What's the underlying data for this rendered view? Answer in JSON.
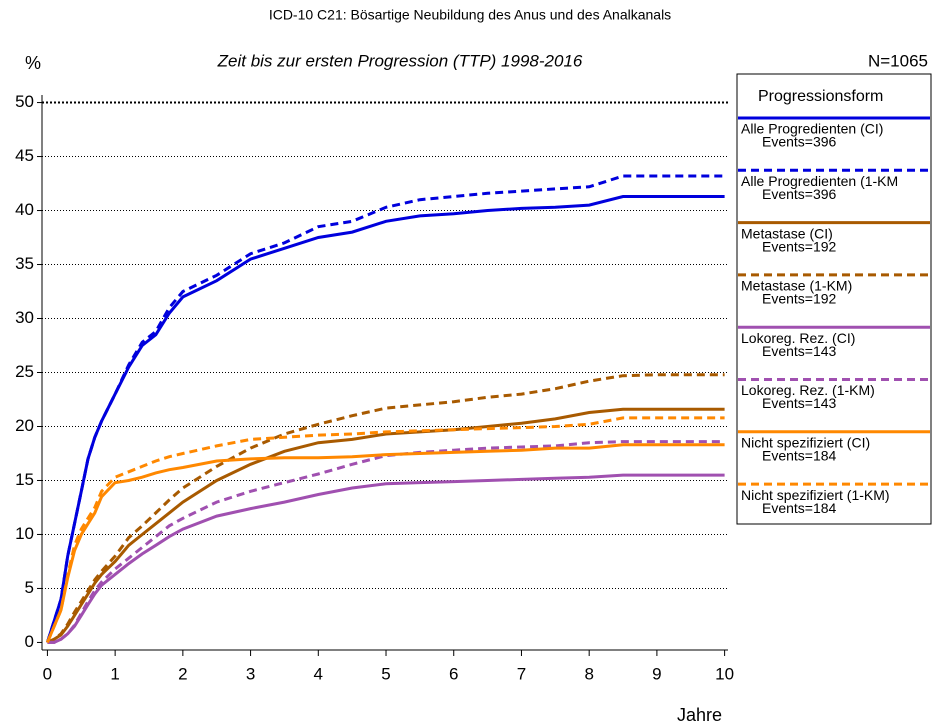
{
  "chart_data": {
    "type": "line",
    "title": "ICD-10 C21: Bösartige Neubildung des Anus und des Analkanals",
    "subtitle": "Zeit bis zur ersten Progression (TTP) 1998-2016",
    "y_label": "%",
    "x_label": "Jahre",
    "annotation": "N=1065",
    "legend_title": "Progressionsform",
    "x": [
      0,
      0.1,
      0.2,
      0.3,
      0.4,
      0.5,
      0.6,
      0.7,
      0.8,
      1,
      1.2,
      1.4,
      1.6,
      1.8,
      2,
      2.5,
      3,
      3.5,
      4,
      4.5,
      5,
      5.5,
      6,
      6.5,
      7,
      7.5,
      8,
      8.5,
      9,
      9.5,
      10
    ],
    "xlim": [
      -0.08,
      10.05
    ],
    "ylim": [
      -0.7,
      50.7
    ],
    "xticks": [
      0,
      1,
      2,
      3,
      4,
      5,
      6,
      7,
      8,
      9,
      10
    ],
    "yticks": [
      0,
      5,
      10,
      15,
      20,
      25,
      30,
      35,
      40,
      45,
      50
    ],
    "grid": true,
    "series": [
      {
        "name": "Alle Progredienten (CI)",
        "events": "Events=396",
        "color": "#0000dd",
        "dashed": false,
        "values": [
          0,
          2,
          4,
          8,
          11,
          14,
          17,
          19,
          20.5,
          23,
          25.5,
          27.5,
          28.5,
          30.5,
          32,
          33.5,
          35.5,
          36.5,
          37.5,
          38,
          39,
          39.5,
          39.7,
          40,
          40.2,
          40.3,
          40.5,
          41.3,
          41.3,
          41.3,
          41.3
        ]
      },
      {
        "name": "Alle Progredienten (1-KM",
        "events": "Events=396",
        "color": "#0000dd",
        "dashed": true,
        "values": [
          0,
          2,
          4,
          8,
          11,
          14,
          17,
          19,
          20.5,
          23,
          25.7,
          27.8,
          28.8,
          31,
          32.5,
          34,
          36,
          37,
          38.5,
          39,
          40.3,
          41,
          41.3,
          41.6,
          41.8,
          42,
          42.2,
          43.2,
          43.2,
          43.2,
          43.2
        ]
      },
      {
        "name": "Metastase (CI)",
        "events": "Events=192",
        "color": "#a85a00",
        "dashed": false,
        "values": [
          0,
          0.3,
          0.7,
          1.5,
          2.5,
          3.5,
          4.5,
          5.5,
          6.3,
          7.5,
          9,
          10,
          11,
          12,
          13,
          15,
          16.5,
          17.7,
          18.5,
          18.8,
          19.3,
          19.5,
          19.7,
          20,
          20.3,
          20.7,
          21.3,
          21.6,
          21.6,
          21.6,
          21.6
        ]
      },
      {
        "name": "Metastase (1-KM)",
        "events": "Events=192",
        "color": "#a85a00",
        "dashed": true,
        "values": [
          0,
          0.3,
          0.8,
          1.7,
          2.8,
          3.8,
          4.8,
          5.8,
          6.6,
          8,
          9.7,
          10.8,
          12,
          13.2,
          14.3,
          16.3,
          18,
          19.3,
          20.2,
          21,
          21.7,
          22,
          22.3,
          22.7,
          23,
          23.5,
          24.2,
          24.7,
          24.8,
          24.8,
          24.8
        ]
      },
      {
        "name": "Lokoreg. Rez. (CI)",
        "events": "Events=143",
        "color": "#a050b0",
        "dashed": false,
        "values": [
          0,
          0,
          0.3,
          0.8,
          1.5,
          2.5,
          3.5,
          4.5,
          5.3,
          6.3,
          7.3,
          8.2,
          9,
          9.8,
          10.5,
          11.7,
          12.4,
          13,
          13.7,
          14.3,
          14.7,
          14.8,
          14.9,
          15,
          15.1,
          15.2,
          15.3,
          15.5,
          15.5,
          15.5,
          15.5
        ]
      },
      {
        "name": "Lokoreg. Rez. (1-KM)",
        "events": "Events=143",
        "color": "#a050b0",
        "dashed": true,
        "values": [
          0,
          0,
          0.3,
          0.8,
          1.6,
          2.7,
          3.8,
          4.8,
          5.6,
          6.8,
          7.8,
          8.8,
          9.8,
          10.8,
          11.5,
          13,
          14,
          14.8,
          15.6,
          16.5,
          17.3,
          17.6,
          17.8,
          18,
          18.1,
          18.2,
          18.5,
          18.6,
          18.6,
          18.6,
          18.6
        ]
      },
      {
        "name": "Nicht spezifiziert (CI)",
        "events": "Events=184",
        "color": "#ff8800",
        "dashed": false,
        "values": [
          0,
          1.5,
          3,
          6,
          8.5,
          10,
          11,
          12,
          13.5,
          14.8,
          15,
          15.3,
          15.7,
          16,
          16.2,
          16.8,
          17,
          17.1,
          17.1,
          17.2,
          17.4,
          17.5,
          17.6,
          17.7,
          17.8,
          18,
          18,
          18.3,
          18.3,
          18.3,
          18.3
        ]
      },
      {
        "name": "Nicht spezifiziert (1-KM)",
        "events": "Events=184",
        "color": "#ff8800",
        "dashed": true,
        "values": [
          0,
          1.5,
          3,
          6.2,
          9,
          10.5,
          11.5,
          12.5,
          14,
          15.3,
          15.8,
          16.3,
          16.8,
          17.2,
          17.5,
          18.2,
          18.8,
          19,
          19.2,
          19.3,
          19.5,
          19.6,
          19.7,
          19.8,
          19.9,
          20,
          20.2,
          20.8,
          20.8,
          20.8,
          20.8
        ]
      }
    ]
  }
}
